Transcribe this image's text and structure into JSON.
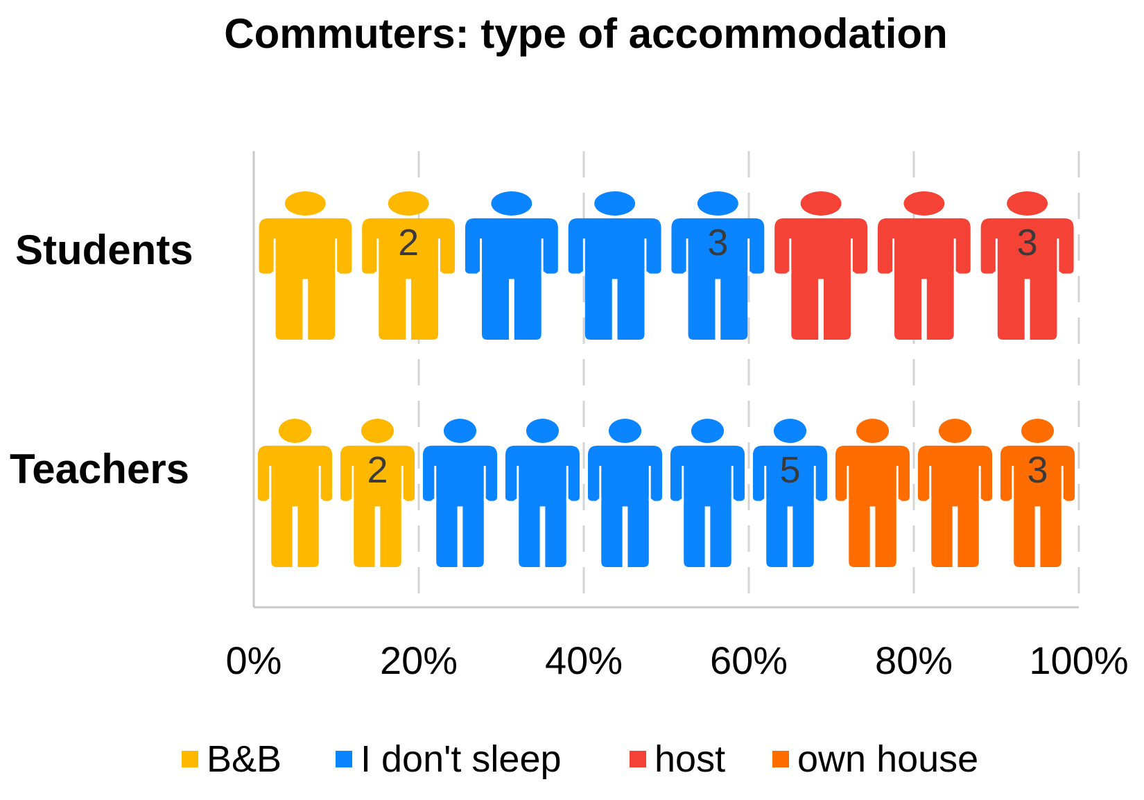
{
  "chart_data": {
    "type": "bar",
    "orientation": "horizontal",
    "stacked_percent": true,
    "pictograph": true,
    "title": "Commuters: type of accommodation",
    "categories": [
      "Students",
      "Teachers"
    ],
    "series": [
      {
        "name": "B&B",
        "color": "#FFB800",
        "values": [
          2,
          2
        ]
      },
      {
        "name": "I don't sleep",
        "color": "#0A84FF",
        "values": [
          3,
          5
        ]
      },
      {
        "name": "host",
        "color": "#F44336",
        "values": [
          3,
          0
        ]
      },
      {
        "name": "own house",
        "color": "#FF6D00",
        "values": [
          0,
          3
        ]
      }
    ],
    "data_labels": [
      {
        "category": "Students",
        "series": "B&B",
        "text": "2"
      },
      {
        "category": "Students",
        "series": "I don't sleep",
        "text": "3"
      },
      {
        "category": "Students",
        "series": "host",
        "text": "3"
      },
      {
        "category": "Teachers",
        "series": "B&B",
        "text": "2"
      },
      {
        "category": "Teachers",
        "series": "I don't sleep",
        "text": "5"
      },
      {
        "category": "Teachers",
        "series": "own house",
        "text": "3"
      }
    ],
    "x_ticks": [
      "0%",
      "20%",
      "40%",
      "60%",
      "80%",
      "100%"
    ],
    "xlim": [
      0,
      100
    ],
    "grid": "vertical dashed",
    "legend_position": "bottom"
  }
}
